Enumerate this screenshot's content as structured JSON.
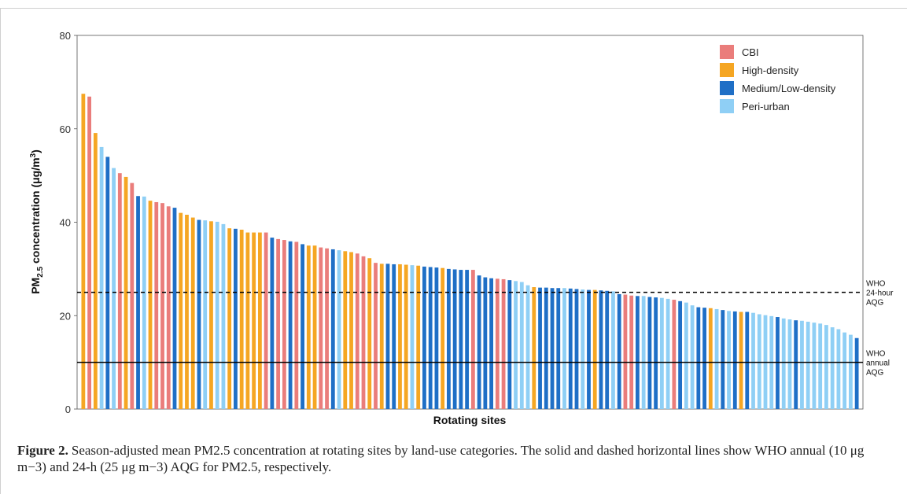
{
  "figure_label": "Figure 2.",
  "caption": "Season-adjusted mean PM2.5 concentration at rotating sites by land-use categories. The solid and dashed horizontal lines show WHO annual (10 μg m−3) and 24-h (25 μg m−3) AQG for PM2.5, respectively.",
  "colors": {
    "CBI": "#ea7d7b",
    "High-density": "#f5a623",
    "Medium/Low-density": "#1f6fc6",
    "Peri-urban": "#8fcff5"
  },
  "chart_data": {
    "type": "bar",
    "xlabel": "Rotating sites",
    "ylabel": "PM2.5 concentration (μg/m3)",
    "ylim": [
      0,
      80
    ],
    "yticks": [
      0,
      20,
      40,
      60,
      80
    ],
    "grid": false,
    "legend_position": "top-right",
    "legend": [
      "CBI",
      "High-density",
      "Medium/Low-density",
      "Peri-urban"
    ],
    "reference_lines": [
      {
        "label": "WHO 24-hour AQG",
        "value": 25,
        "style": "dashed"
      },
      {
        "label": "WHO annual AQG",
        "value": 10,
        "style": "solid"
      }
    ],
    "values": [
      67.5,
      66.9,
      59.1,
      56.1,
      54.0,
      51.6,
      50.5,
      49.7,
      48.4,
      45.6,
      45.5,
      44.6,
      44.3,
      44.1,
      43.4,
      43.1,
      42.0,
      41.6,
      41.0,
      40.5,
      40.4,
      40.2,
      40.1,
      39.6,
      38.7,
      38.6,
      38.4,
      37.8,
      37.8,
      37.8,
      37.8,
      36.7,
      36.4,
      36.2,
      35.9,
      35.8,
      35.3,
      35.0,
      35.0,
      34.6,
      34.4,
      34.2,
      34.0,
      33.8,
      33.6,
      33.3,
      32.7,
      32.3,
      31.3,
      31.1,
      31.1,
      31.0,
      31.0,
      30.9,
      30.8,
      30.7,
      30.5,
      30.4,
      30.3,
      30.2,
      30.0,
      29.9,
      29.8,
      29.8,
      29.8,
      28.6,
      28.2,
      28.0,
      27.9,
      27.8,
      27.6,
      27.4,
      27.2,
      26.5,
      26.1,
      26.0,
      26.0,
      25.9,
      25.9,
      25.9,
      25.8,
      25.7,
      25.6,
      25.5,
      25.5,
      25.4,
      25.3,
      25.2,
      24.6,
      24.5,
      24.3,
      24.2,
      24.2,
      24.0,
      23.9,
      23.8,
      23.6,
      23.4,
      23.1,
      22.8,
      22.2,
      21.8,
      21.7,
      21.6,
      21.4,
      21.2,
      21.0,
      20.9,
      20.8,
      20.8,
      20.6,
      20.3,
      20.1,
      19.9,
      19.7,
      19.4,
      19.2,
      19.0,
      18.9,
      18.7,
      18.5,
      18.3,
      18.0,
      17.5,
      17.1,
      16.4,
      15.9,
      15.2
    ],
    "categories": [
      "High-density",
      "CBI",
      "High-density",
      "Peri-urban",
      "Medium/Low-density",
      "Peri-urban",
      "CBI",
      "High-density",
      "CBI",
      "Medium/Low-density",
      "Peri-urban",
      "High-density",
      "CBI",
      "CBI",
      "CBI",
      "Medium/Low-density",
      "High-density",
      "High-density",
      "High-density",
      "Medium/Low-density",
      "Peri-urban",
      "High-density",
      "Peri-urban",
      "Peri-urban",
      "High-density",
      "Medium/Low-density",
      "High-density",
      "High-density",
      "High-density",
      "High-density",
      "CBI",
      "Medium/Low-density",
      "CBI",
      "CBI",
      "Medium/Low-density",
      "CBI",
      "Medium/Low-density",
      "High-density",
      "High-density",
      "CBI",
      "CBI",
      "Medium/Low-density",
      "Peri-urban",
      "High-density",
      "High-density",
      "CBI",
      "CBI",
      "High-density",
      "CBI",
      "High-density",
      "Medium/Low-density",
      "Medium/Low-density",
      "High-density",
      "High-density",
      "Peri-urban",
      "High-density",
      "Medium/Low-density",
      "Medium/Low-density",
      "Medium/Low-density",
      "High-density",
      "Medium/Low-density",
      "Medium/Low-density",
      "Medium/Low-density",
      "Medium/Low-density",
      "CBI",
      "Medium/Low-density",
      "Medium/Low-density",
      "Medium/Low-density",
      "CBI",
      "CBI",
      "Medium/Low-density",
      "Peri-urban",
      "Peri-urban",
      "Peri-urban",
      "High-density",
      "Medium/Low-density",
      "Medium/Low-density",
      "Medium/Low-density",
      "Medium/Low-density",
      "Peri-urban",
      "Medium/Low-density",
      "Medium/Low-density",
      "Peri-urban",
      "Medium/Low-density",
      "High-density",
      "Medium/Low-density",
      "Medium/Low-density",
      "Peri-urban",
      "Medium/Low-density",
      "CBI",
      "CBI",
      "Medium/Low-density",
      "Peri-urban",
      "Medium/Low-density",
      "Medium/Low-density",
      "Peri-urban",
      "Peri-urban",
      "CBI",
      "Medium/Low-density",
      "Peri-urban",
      "Peri-urban",
      "Medium/Low-density",
      "Medium/Low-density",
      "High-density",
      "Peri-urban",
      "Medium/Low-density",
      "Peri-urban",
      "Medium/Low-density",
      "High-density",
      "Medium/Low-density",
      "Peri-urban",
      "Peri-urban",
      "Peri-urban",
      "Peri-urban",
      "Medium/Low-density",
      "Peri-urban",
      "Peri-urban",
      "Medium/Low-density",
      "Peri-urban",
      "Peri-urban",
      "Peri-urban",
      "Peri-urban",
      "Peri-urban",
      "Peri-urban",
      "Peri-urban",
      "Peri-urban",
      "Peri-urban",
      "Medium/Low-density"
    ]
  }
}
